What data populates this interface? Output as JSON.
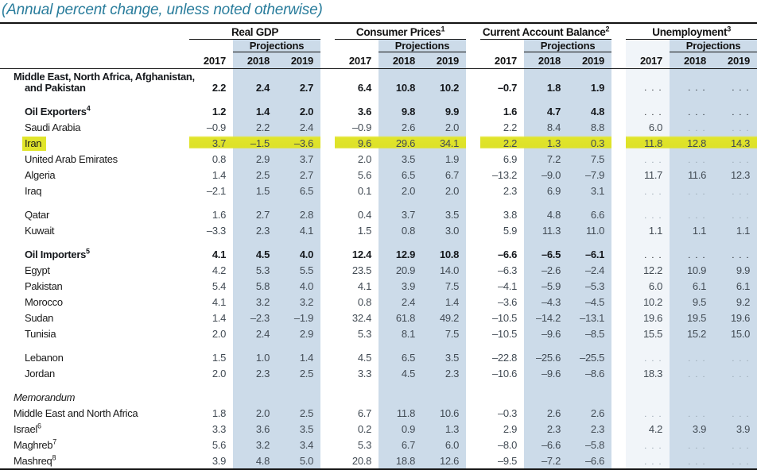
{
  "subtitle": "(Annual percent change, unless noted otherwise)",
  "colors": {
    "projection_shade": "#ccdbe9",
    "unemployment_2017_tint": "#f1f5f9",
    "highlight_yellow": "#e1e52b",
    "subtitle_teal": "#2a7d9c",
    "rule_black": "#121212"
  },
  "table": {
    "projections_label": "Projections",
    "years": [
      "2017",
      "2018",
      "2019"
    ],
    "ellipsis": ". . .",
    "groups": [
      {
        "label": "Real GDP",
        "sup": ""
      },
      {
        "label": "Consumer Prices",
        "sup": "1"
      },
      {
        "label": "Current Account Balance",
        "sup": "2"
      },
      {
        "label": "Unemployment",
        "sup": "3"
      }
    ],
    "rows": [
      {
        "label": "Middle East, North Africa, Afghanistan,\nand Pakistan",
        "sup": "",
        "bold": true,
        "italic": false,
        "indent": 0,
        "twoline": true,
        "highlight": false,
        "gap_before": false,
        "values": [
          "2.2",
          "2.4",
          "2.7",
          "6.4",
          "10.8",
          "10.2",
          "–0.7",
          "1.8",
          "1.9",
          "...",
          "...",
          "..."
        ]
      },
      {
        "label": "Oil Exporters",
        "sup": "4",
        "bold": true,
        "italic": false,
        "indent": 1,
        "twoline": false,
        "highlight": false,
        "gap_before": true,
        "values": [
          "1.2",
          "1.4",
          "2.0",
          "3.6",
          "9.8",
          "9.9",
          "1.6",
          "4.7",
          "4.8",
          "...",
          "...",
          "..."
        ]
      },
      {
        "label": "Saudi Arabia",
        "sup": "",
        "bold": false,
        "italic": false,
        "indent": 1,
        "twoline": false,
        "highlight": false,
        "gap_before": false,
        "values": [
          "–0.9",
          "2.2",
          "2.4",
          "–0.9",
          "2.6",
          "2.0",
          "2.2",
          "8.4",
          "8.8",
          "6.0",
          "...",
          "..."
        ]
      },
      {
        "label": "Iran",
        "sup": "",
        "bold": false,
        "italic": false,
        "indent": 1,
        "twoline": false,
        "highlight": true,
        "gap_before": false,
        "values": [
          "3.7",
          "–1.5",
          "–3.6",
          "9.6",
          "29.6",
          "34.1",
          "2.2",
          "1.3",
          "0.3",
          "11.8",
          "12.8",
          "14.3"
        ]
      },
      {
        "label": "United Arab Emirates",
        "sup": "",
        "bold": false,
        "italic": false,
        "indent": 1,
        "twoline": false,
        "highlight": false,
        "gap_before": false,
        "values": [
          "0.8",
          "2.9",
          "3.7",
          "2.0",
          "3.5",
          "1.9",
          "6.9",
          "7.2",
          "7.5",
          "...",
          "...",
          "..."
        ]
      },
      {
        "label": "Algeria",
        "sup": "",
        "bold": false,
        "italic": false,
        "indent": 1,
        "twoline": false,
        "highlight": false,
        "gap_before": false,
        "values": [
          "1.4",
          "2.5",
          "2.7",
          "5.6",
          "6.5",
          "6.7",
          "–13.2",
          "–9.0",
          "–7.9",
          "11.7",
          "11.6",
          "12.3"
        ]
      },
      {
        "label": "Iraq",
        "sup": "",
        "bold": false,
        "italic": false,
        "indent": 1,
        "twoline": false,
        "highlight": false,
        "gap_before": false,
        "values": [
          "–2.1",
          "1.5",
          "6.5",
          "0.1",
          "2.0",
          "2.0",
          "2.3",
          "6.9",
          "3.1",
          "...",
          "...",
          "..."
        ]
      },
      {
        "label": "Qatar",
        "sup": "",
        "bold": false,
        "italic": false,
        "indent": 1,
        "twoline": false,
        "highlight": false,
        "gap_before": true,
        "values": [
          "1.6",
          "2.7",
          "2.8",
          "0.4",
          "3.7",
          "3.5",
          "3.8",
          "4.8",
          "6.6",
          "...",
          "...",
          "..."
        ]
      },
      {
        "label": "Kuwait",
        "sup": "",
        "bold": false,
        "italic": false,
        "indent": 1,
        "twoline": false,
        "highlight": false,
        "gap_before": false,
        "values": [
          "–3.3",
          "2.3",
          "4.1",
          "1.5",
          "0.8",
          "3.0",
          "5.9",
          "11.3",
          "11.0",
          "1.1",
          "1.1",
          "1.1"
        ]
      },
      {
        "label": "Oil Importers",
        "sup": "5",
        "bold": true,
        "italic": false,
        "indent": 1,
        "twoline": false,
        "highlight": false,
        "gap_before": true,
        "values": [
          "4.1",
          "4.5",
          "4.0",
          "12.4",
          "12.9",
          "10.8",
          "–6.6",
          "–6.5",
          "–6.1",
          "...",
          "...",
          "..."
        ]
      },
      {
        "label": "Egypt",
        "sup": "",
        "bold": false,
        "italic": false,
        "indent": 1,
        "twoline": false,
        "highlight": false,
        "gap_before": false,
        "values": [
          "4.2",
          "5.3",
          "5.5",
          "23.5",
          "20.9",
          "14.0",
          "–6.3",
          "–2.6",
          "–2.4",
          "12.2",
          "10.9",
          "9.9"
        ]
      },
      {
        "label": "Pakistan",
        "sup": "",
        "bold": false,
        "italic": false,
        "indent": 1,
        "twoline": false,
        "highlight": false,
        "gap_before": false,
        "values": [
          "5.4",
          "5.8",
          "4.0",
          "4.1",
          "3.9",
          "7.5",
          "–4.1",
          "–5.9",
          "–5.3",
          "6.0",
          "6.1",
          "6.1"
        ]
      },
      {
        "label": "Morocco",
        "sup": "",
        "bold": false,
        "italic": false,
        "indent": 1,
        "twoline": false,
        "highlight": false,
        "gap_before": false,
        "values": [
          "4.1",
          "3.2",
          "3.2",
          "0.8",
          "2.4",
          "1.4",
          "–3.6",
          "–4.3",
          "–4.5",
          "10.2",
          "9.5",
          "9.2"
        ]
      },
      {
        "label": "Sudan",
        "sup": "",
        "bold": false,
        "italic": false,
        "indent": 1,
        "twoline": false,
        "highlight": false,
        "gap_before": false,
        "values": [
          "1.4",
          "–2.3",
          "–1.9",
          "32.4",
          "61.8",
          "49.2",
          "–10.5",
          "–14.2",
          "–13.1",
          "19.6",
          "19.5",
          "19.6"
        ]
      },
      {
        "label": "Tunisia",
        "sup": "",
        "bold": false,
        "italic": false,
        "indent": 1,
        "twoline": false,
        "highlight": false,
        "gap_before": false,
        "values": [
          "2.0",
          "2.4",
          "2.9",
          "5.3",
          "8.1",
          "7.5",
          "–10.5",
          "–9.6",
          "–8.5",
          "15.5",
          "15.2",
          "15.0"
        ]
      },
      {
        "label": "Lebanon",
        "sup": "",
        "bold": false,
        "italic": false,
        "indent": 1,
        "twoline": false,
        "highlight": false,
        "gap_before": true,
        "values": [
          "1.5",
          "1.0",
          "1.4",
          "4.5",
          "6.5",
          "3.5",
          "–22.8",
          "–25.6",
          "–25.5",
          "...",
          "...",
          "..."
        ]
      },
      {
        "label": "Jordan",
        "sup": "",
        "bold": false,
        "italic": false,
        "indent": 1,
        "twoline": false,
        "highlight": false,
        "gap_before": false,
        "values": [
          "2.0",
          "2.3",
          "2.5",
          "3.3",
          "4.5",
          "2.3",
          "–10.6",
          "–9.6",
          "–8.6",
          "18.3",
          "...",
          "..."
        ]
      },
      {
        "label": "Memorandum",
        "sup": "",
        "bold": false,
        "italic": true,
        "indent": 0,
        "twoline": false,
        "highlight": false,
        "gap_before": true,
        "values": []
      },
      {
        "label": "Middle East and North Africa",
        "sup": "",
        "bold": false,
        "italic": false,
        "indent": 0,
        "twoline": false,
        "highlight": false,
        "gap_before": false,
        "values": [
          "1.8",
          "2.0",
          "2.5",
          "6.7",
          "11.8",
          "10.6",
          "–0.3",
          "2.6",
          "2.6",
          "...",
          "...",
          "..."
        ]
      },
      {
        "label": "Israel",
        "sup": "6",
        "bold": false,
        "italic": false,
        "indent": 0,
        "twoline": false,
        "highlight": false,
        "gap_before": false,
        "values": [
          "3.3",
          "3.6",
          "3.5",
          "0.2",
          "0.9",
          "1.3",
          "2.9",
          "2.3",
          "2.3",
          "4.2",
          "3.9",
          "3.9"
        ]
      },
      {
        "label": "Maghreb",
        "sup": "7",
        "bold": false,
        "italic": false,
        "indent": 0,
        "twoline": false,
        "highlight": false,
        "gap_before": false,
        "values": [
          "5.6",
          "3.2",
          "3.4",
          "5.3",
          "6.7",
          "6.0",
          "–8.0",
          "–6.6",
          "–5.8",
          "...",
          "...",
          "..."
        ]
      },
      {
        "label": "Mashreq",
        "sup": "8",
        "bold": false,
        "italic": false,
        "indent": 0,
        "twoline": false,
        "highlight": false,
        "gap_before": false,
        "values": [
          "3.9",
          "4.8",
          "5.0",
          "20.8",
          "18.8",
          "12.6",
          "–9.5",
          "–7.2",
          "–6.6",
          "...",
          "...",
          "..."
        ]
      }
    ]
  }
}
